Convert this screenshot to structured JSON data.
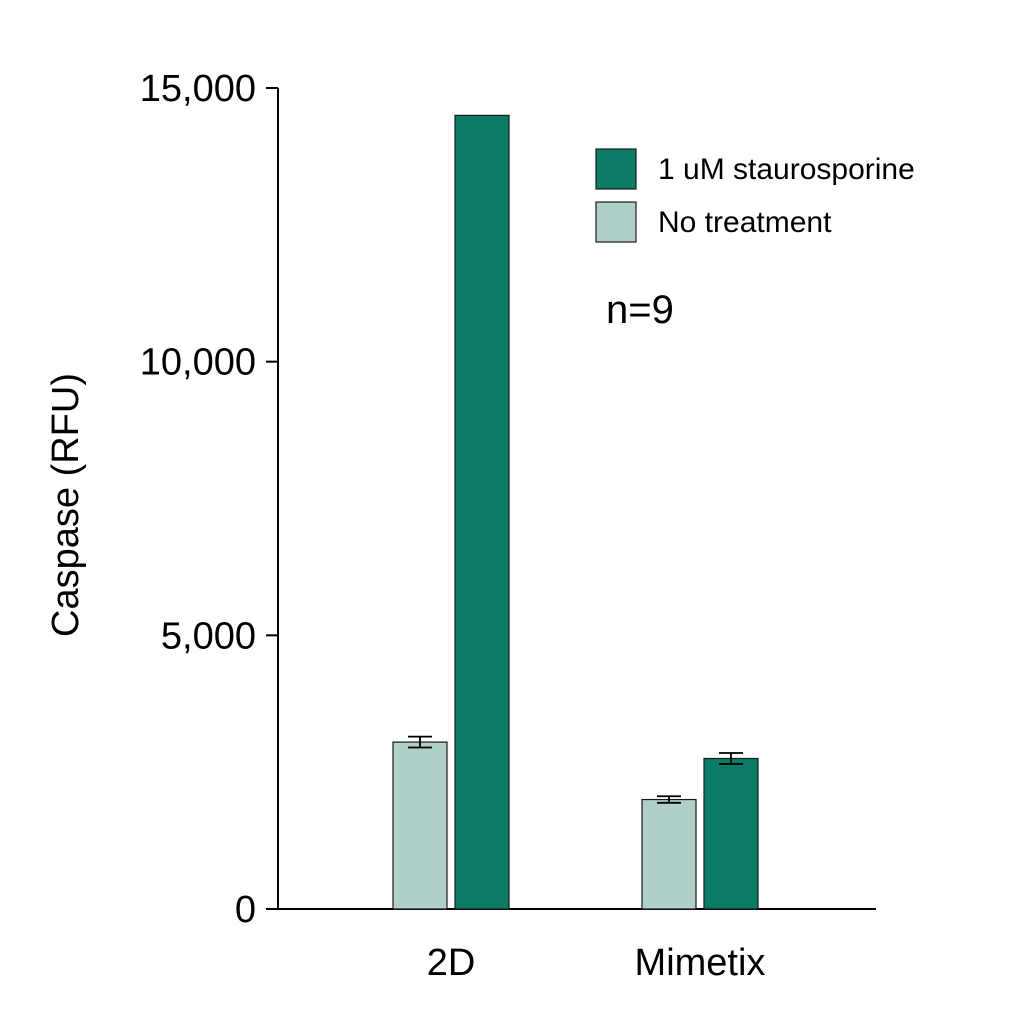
{
  "chart_data": {
    "type": "bar",
    "categories": [
      "2D",
      "Mimetix"
    ],
    "series": [
      {
        "name": "No treatment",
        "values": [
          3050,
          2000
        ],
        "errors": [
          100,
          60
        ],
        "color": "#b0cfca"
      },
      {
        "name": "1 uM staurosporine",
        "values": [
          14500,
          2750
        ],
        "errors": [
          0,
          100
        ],
        "color": "#0a7c66"
      }
    ],
    "ylabel": "Caspase (RFU)",
    "xlabel": "",
    "ylim": [
      0,
      15000
    ],
    "yticks": [
      0,
      5000,
      10000,
      15000
    ],
    "ytick_labels": [
      "0",
      "5,000",
      "10,000",
      "15,000"
    ],
    "grid": false,
    "legend": {
      "position": "top-right",
      "entries": [
        "1 uM staurosporine",
        "No treatment"
      ]
    },
    "annotation": "n=9"
  }
}
